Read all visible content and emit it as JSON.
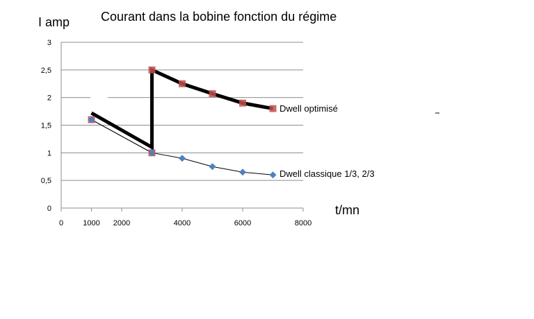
{
  "chart_data": {
    "type": "line",
    "title": "Courant dans la bobine  fonction du régime",
    "ylabel": "I amp",
    "xlabel": "t/mn",
    "xlim": [
      0,
      8000
    ],
    "ylim": [
      0,
      3
    ],
    "x_ticks": [
      {
        "value": 0,
        "label": "0"
      },
      {
        "value": 1000,
        "label": "1000"
      },
      {
        "value": 2000,
        "label": "2000"
      },
      {
        "value": 4000,
        "label": "4000"
      },
      {
        "value": 6000,
        "label": "6000"
      },
      {
        "value": 8000,
        "label": "8000"
      }
    ],
    "y_ticks": [
      {
        "value": 0,
        "label": "0"
      },
      {
        "value": 0.5,
        "label": "0,5"
      },
      {
        "value": 1,
        "label": "1"
      },
      {
        "value": 1.5,
        "label": "1,5"
      },
      {
        "value": 2,
        "label": "2"
      },
      {
        "value": 2.5,
        "label": "2,5"
      },
      {
        "value": 3,
        "label": "3"
      }
    ],
    "grid": true,
    "legend": "none",
    "series": [
      {
        "name": "Dwell optimisé",
        "color": "#000000",
        "marker_color": "#c0504d",
        "marker": "square",
        "x": [
          1000,
          3000,
          3000,
          4000,
          5000,
          6000,
          7000
        ],
        "y": [
          1.6,
          1.0,
          2.5,
          2.25,
          2.07,
          1.9,
          1.8
        ]
      },
      {
        "name": "Dwell classique 1/3, 2/3",
        "color": "#000000",
        "marker_color": "#4f81bd",
        "marker": "diamond",
        "x": [
          1000,
          3000,
          4000,
          5000,
          6000,
          7000
        ],
        "y": [
          1.6,
          1.0,
          0.9,
          0.75,
          0.65,
          0.6
        ]
      }
    ],
    "overlay_line": {
      "x": [
        1000,
        3000,
        3000,
        4000,
        5000,
        6000,
        7000
      ],
      "y": [
        1.72,
        1.1,
        2.5,
        2.25,
        2.07,
        1.9,
        1.8
      ]
    }
  }
}
